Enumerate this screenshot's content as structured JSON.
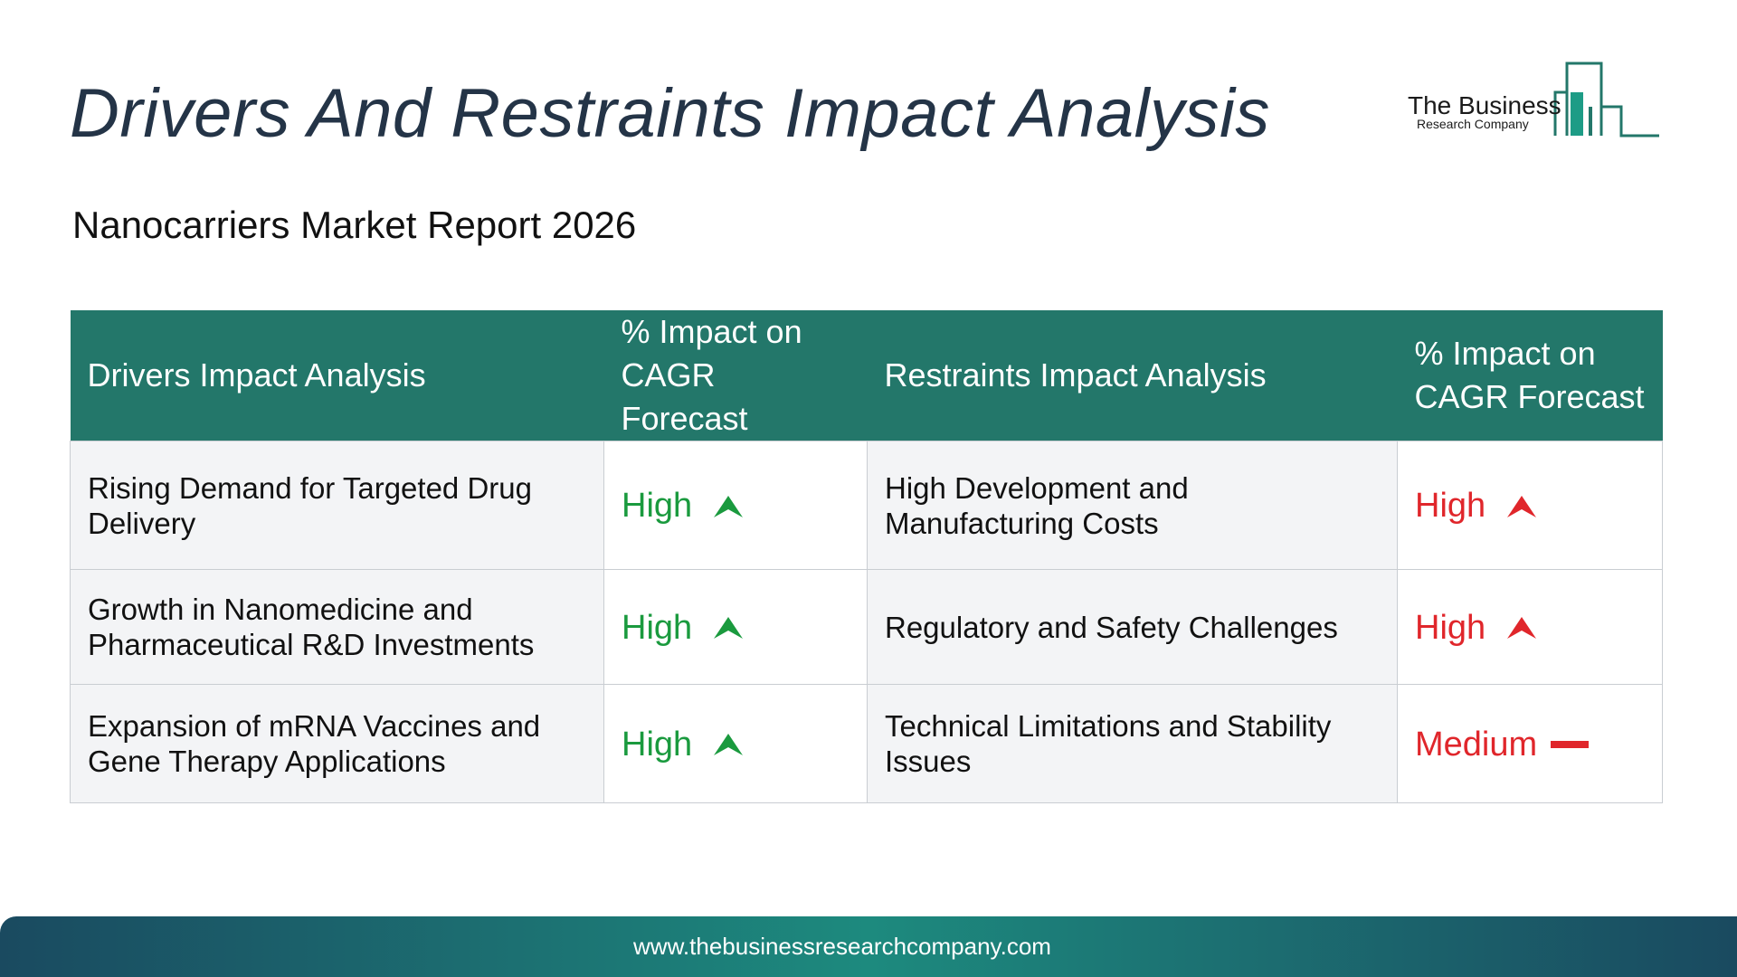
{
  "header": {
    "title": "Drivers And Restraints Impact Analysis",
    "subtitle": "Nanocarriers Market Report 2026"
  },
  "logo": {
    "line1": "The Business",
    "line2": "Research Company"
  },
  "table": {
    "headers": [
      "Drivers Impact Analysis",
      "% Impact on CAGR Forecast",
      "Restraints Impact Analysis",
      "% Impact on CAGR Forecast"
    ],
    "rows": [
      {
        "driver": "Rising Demand for Targeted Drug Delivery",
        "driver_impact": "High",
        "driver_indicator": "up-arrow-icon",
        "restraint": "High Development and Manufacturing Costs",
        "restraint_impact": "High",
        "restraint_indicator": "up-arrow-icon"
      },
      {
        "driver": "Growth in Nanomedicine and Pharmaceutical R&D Investments",
        "driver_impact": "High",
        "driver_indicator": "up-arrow-icon",
        "restraint": "Regulatory and Safety Challenges",
        "restraint_impact": "High",
        "restraint_indicator": "up-arrow-icon"
      },
      {
        "driver": "Expansion of mRNA Vaccines and Gene Therapy Applications",
        "driver_impact": "High",
        "driver_indicator": "up-arrow-icon",
        "restraint": "Technical Limitations and Stability Issues",
        "restraint_impact": "Medium",
        "restraint_indicator": "dash-icon"
      }
    ]
  },
  "colors": {
    "header_bg": "#23776a",
    "title": "#243447",
    "driver_impact": "#1a9a3e",
    "restraint_impact": "#e0262b",
    "footer_mid": "#1d8a7e",
    "footer_edge": "#1a4a60"
  },
  "footer": {
    "url": "www.thebusinessresearchcompany.com"
  }
}
